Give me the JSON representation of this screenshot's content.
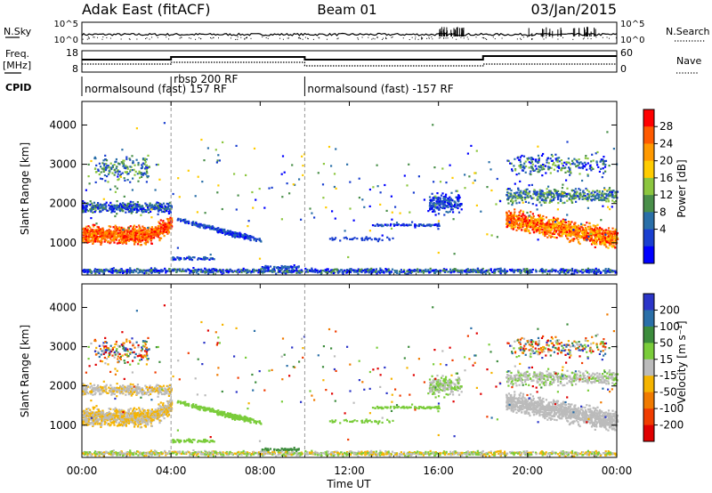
{
  "header": {
    "station": "Adak East (fitACF)",
    "beam": "Beam 01",
    "date": "03/Jan/2015"
  },
  "strips": {
    "nsky": {
      "label": "N.Sky",
      "ticks": [
        "10^5",
        "10^0"
      ]
    },
    "nsearch": {
      "label": "N.Search",
      "ticks": [
        "10^5",
        "10^0"
      ]
    },
    "freq": {
      "label_line1": "Freq.",
      "label_line2": "[MHz]",
      "ticks": [
        "18",
        "8"
      ]
    },
    "nave": {
      "label": "Nave",
      "ticks": [
        "60",
        "0"
      ]
    },
    "cpid": {
      "label": "CPID",
      "segments": [
        {
          "start_h": 0,
          "end_h": 4,
          "text": "normalsound (fast) 157 RF"
        },
        {
          "start_h": 4,
          "end_h": 10,
          "text": "rbsp 200 RF"
        },
        {
          "start_h": 10,
          "end_h": 24,
          "text": "normalsound (fast) -157 RF"
        }
      ]
    }
  },
  "colorbars": {
    "power": {
      "label": "Power [dB]",
      "ticks": [
        "28",
        "24",
        "20",
        "16",
        "12",
        "8",
        "4"
      ],
      "colors": [
        "#ff0000",
        "#ff5a00",
        "#ff9900",
        "#ffcc00",
        "#8cc63f",
        "#4a8f4a",
        "#2a6fa8",
        "#1a3fd0",
        "#0000ff"
      ]
    },
    "velocity": {
      "label": "Velocity [m s⁻¹]",
      "ticks": [
        "200",
        "100",
        "50",
        "15",
        "-15",
        "-50",
        "-100",
        "-200"
      ],
      "colors": [
        "#2b35c8",
        "#2a6fa8",
        "#3c8c3c",
        "#7acc3a",
        "#bbbbbb",
        "#f5b400",
        "#f07a00",
        "#f03c00",
        "#e00000"
      ]
    }
  },
  "chart_data": [
    {
      "type": "heatmap",
      "name": "power",
      "xlabel": "",
      "ylabel": "Slant Range [km]",
      "x_range_hours": [
        0,
        24
      ],
      "y_range_km": [
        180,
        4600
      ],
      "y_ticks": [
        "1000",
        "2000",
        "3000",
        "4000"
      ],
      "x_ticks": [
        "00:00",
        "04:00",
        "08:00",
        "12:00",
        "16:00",
        "20:00",
        "00:00"
      ]
    },
    {
      "type": "heatmap",
      "name": "velocity",
      "xlabel": "Time UT",
      "ylabel": "Slant Range [km]",
      "x_range_hours": [
        0,
        24
      ],
      "y_range_km": [
        180,
        4600
      ],
      "y_ticks": [
        "1000",
        "2000",
        "3000",
        "4000"
      ],
      "x_ticks": [
        "00:00",
        "04:00",
        "08:00",
        "12:00",
        "16:00",
        "20:00",
        "00:00"
      ]
    }
  ]
}
